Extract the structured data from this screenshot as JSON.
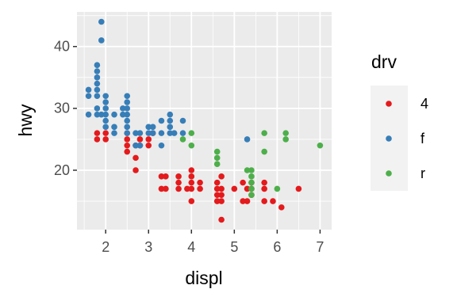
{
  "chart_data": {
    "type": "scatter",
    "x_label": "displ",
    "y_label": "hwy",
    "xlim": [
      1.33,
      7.27
    ],
    "ylim": [
      10.4,
      45.6
    ],
    "xticks": [
      2,
      3,
      4,
      5,
      6,
      7
    ],
    "yticks": [
      20,
      30,
      40
    ],
    "grid": true,
    "legend_title": "drv",
    "legend_position": "right",
    "series": [
      {
        "name": "4",
        "color": "#E41A1C",
        "x": [
          1.8,
          1.8,
          2.0,
          2.0,
          2.5,
          2.5,
          2.5,
          2.5,
          2.7,
          2.7,
          2.7,
          2.8,
          2.8,
          3.0,
          3.0,
          3.1,
          3.3,
          3.3,
          3.4,
          3.4,
          3.7,
          3.7,
          3.7,
          3.9,
          4.0,
          4.0,
          4.0,
          4.0,
          4.0,
          4.2,
          4.2,
          4.6,
          4.6,
          4.6,
          4.6,
          4.7,
          4.7,
          4.7,
          4.7,
          4.7,
          5.0,
          5.2,
          5.2,
          5.3,
          5.3,
          5.4,
          5.4,
          5.4,
          5.7,
          5.7,
          5.7,
          5.9,
          6.1,
          6.5
        ],
        "values": [
          26,
          25,
          26,
          25,
          26,
          25,
          24,
          23,
          24,
          22,
          20,
          25,
          24,
          25,
          24,
          26,
          19,
          17,
          19,
          17,
          19,
          18,
          17,
          17,
          20,
          19,
          18,
          17,
          15,
          18,
          17,
          18,
          17,
          16,
          15,
          19,
          17,
          16,
          15,
          12,
          17,
          18,
          15,
          17,
          15,
          18,
          17,
          16,
          18,
          17,
          15,
          15,
          14,
          17
        ]
      },
      {
        "name": "f",
        "color": "#377EB8",
        "x": [
          1.6,
          1.6,
          1.6,
          1.8,
          1.8,
          1.8,
          1.8,
          1.8,
          1.8,
          1.8,
          1.8,
          1.9,
          1.9,
          1.9,
          2.0,
          2.0,
          2.0,
          2.0,
          2.0,
          2.0,
          2.2,
          2.2,
          2.2,
          2.4,
          2.4,
          2.5,
          2.5,
          2.5,
          2.5,
          2.5,
          2.5,
          2.5,
          2.7,
          2.7,
          2.8,
          2.8,
          3.0,
          3.0,
          3.1,
          3.1,
          3.3,
          3.3,
          3.3,
          3.5,
          3.5,
          3.5,
          3.5,
          3.6,
          3.8,
          3.8,
          5.3
        ],
        "values": [
          33,
          32,
          29,
          37,
          36,
          35,
          34,
          33,
          32,
          30,
          29,
          44,
          41,
          29,
          32,
          31,
          30,
          29,
          28,
          27,
          29,
          27,
          26,
          30,
          29,
          32,
          31,
          30,
          29,
          28,
          27,
          26,
          26,
          24,
          26,
          24,
          27,
          26,
          27,
          26,
          28,
          26,
          24,
          29,
          28,
          27,
          26,
          26,
          28,
          26,
          25
        ]
      },
      {
        "name": "r",
        "color": "#4DAF4A",
        "x": [
          3.8,
          4.0,
          4.0,
          4.6,
          4.6,
          4.6,
          5.3,
          5.4,
          5.4,
          5.4,
          5.4,
          5.4,
          5.7,
          5.7,
          6.0,
          6.2,
          6.2,
          7.0
        ],
        "values": [
          25,
          26,
          24,
          23,
          22,
          21,
          20,
          20,
          19,
          18,
          17,
          16,
          26,
          23,
          17,
          26,
          25,
          24
        ]
      }
    ]
  }
}
